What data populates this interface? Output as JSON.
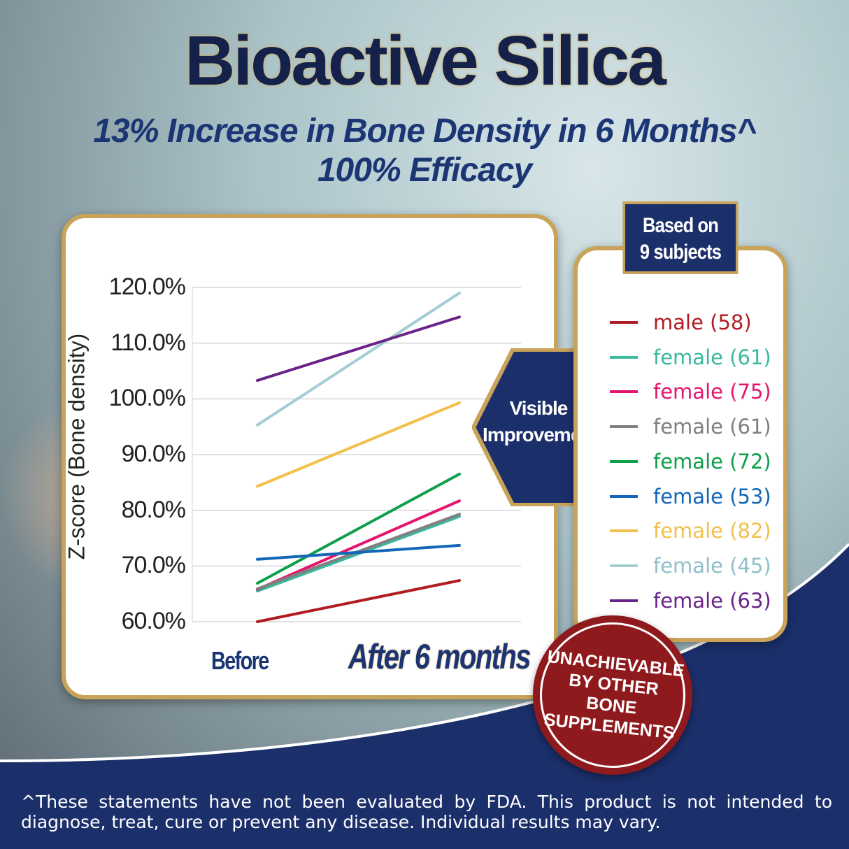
{
  "header": {
    "title": "Bioactive Silica",
    "subtitle1": "13% Increase in Bone Density in 6 Months^",
    "subtitle2": "100% Efficacy"
  },
  "badge": {
    "line1": "Based on",
    "line2": "9 subjects"
  },
  "callout": {
    "line1": "Visible",
    "line2": "Improvement"
  },
  "seal": {
    "text": "UNACHIEVABLE BY OTHER BONE SUPPLEMENTS"
  },
  "footer": {
    "text": "^These statements have not been evaluated by FDA. This product is not intended to diagnose, treat, cure or prevent any disease. Individual results may vary."
  },
  "chart_data": {
    "type": "line",
    "ylabel": "Z-score (Bone density)",
    "categories": [
      "Before",
      "After 6 months"
    ],
    "ylim": [
      60,
      120
    ],
    "yticks": [
      "60.0%",
      "70.0%",
      "80.0%",
      "90.0%",
      "100.0%",
      "110.0%",
      "120.0%"
    ],
    "grid": true,
    "legend_position": "right",
    "series": [
      {
        "name": "male (58)",
        "color": "#b01c22",
        "values": [
          60.0,
          67.4
        ]
      },
      {
        "name": "female (61)",
        "color": "#3bb8a0",
        "values": [
          65.5,
          78.9
        ]
      },
      {
        "name": "female (75)",
        "color": "#e5156e",
        "values": [
          65.8,
          81.7
        ]
      },
      {
        "name": "female (61)",
        "color": "#808080",
        "values": [
          65.9,
          79.3
        ]
      },
      {
        "name": "female (72)",
        "color": "#0f9e4a",
        "values": [
          66.9,
          86.5
        ]
      },
      {
        "name": "female (53)",
        "color": "#1366b8",
        "values": [
          71.2,
          73.7
        ]
      },
      {
        "name": "female (82)",
        "color": "#f2c04a",
        "values": [
          84.3,
          99.3
        ]
      },
      {
        "name": "female (45)",
        "color": "#a3cdd4",
        "values": [
          95.3,
          119.0
        ]
      },
      {
        "name": "female (63)",
        "color": "#6a2389",
        "values": [
          103.3,
          114.7
        ]
      }
    ]
  }
}
